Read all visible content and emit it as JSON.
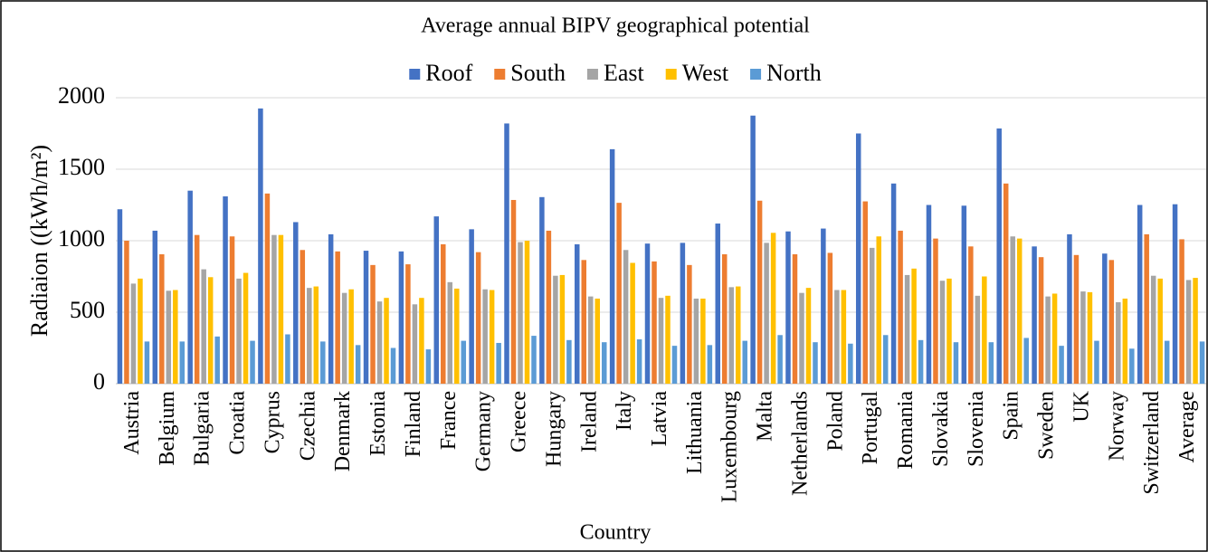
{
  "chart_data": {
    "type": "bar",
    "title": "Average annual BIPV geographical potential",
    "x_label": "Country",
    "y_label": "Radiaion ((kWh/m²)",
    "categories": [
      "Austria",
      "Belgium",
      "Bulgaria",
      "Croatia",
      "Cyprus",
      "Czechia",
      "Denmark",
      "Estonia",
      "Finland",
      "France",
      "Germany",
      "Greece",
      "Hungary",
      "Ireland",
      "Italy",
      "Latvia",
      "Lithuania",
      "Luxembourg",
      "Malta",
      "Netherlands",
      "Poland",
      "Portugal",
      "Romania",
      "Slovakia",
      "Slovenia",
      "Spain",
      "Sweden",
      "UK",
      "Norway",
      "Switzerland",
      "Average"
    ],
    "series": [
      {
        "name": "Roof",
        "color": "#4472c4",
        "values": [
          1220,
          1070,
          1350,
          1310,
          1925,
          1130,
          1045,
          930,
          925,
          1170,
          1080,
          1820,
          1305,
          975,
          1640,
          980,
          985,
          1120,
          1875,
          1065,
          1085,
          1750,
          1400,
          1250,
          1245,
          1785,
          960,
          1045,
          910,
          1250,
          1255
        ]
      },
      {
        "name": "South",
        "color": "#ed7d31",
        "values": [
          1000,
          905,
          1040,
          1030,
          1330,
          935,
          925,
          830,
          835,
          975,
          920,
          1285,
          1070,
          865,
          1265,
          855,
          830,
          905,
          1280,
          905,
          915,
          1275,
          1070,
          1015,
          960,
          1400,
          885,
          900,
          865,
          1045,
          1010
        ]
      },
      {
        "name": "East",
        "color": "#a5a5a5",
        "values": [
          700,
          650,
          800,
          735,
          1040,
          670,
          635,
          575,
          555,
          710,
          660,
          990,
          755,
          610,
          935,
          600,
          595,
          675,
          985,
          635,
          655,
          950,
          760,
          720,
          615,
          1030,
          610,
          645,
          570,
          755,
          725
        ]
      },
      {
        "name": "West",
        "color": "#ffc000",
        "values": [
          735,
          655,
          745,
          775,
          1040,
          680,
          660,
          600,
          600,
          665,
          655,
          1000,
          760,
          595,
          845,
          615,
          595,
          680,
          1055,
          670,
          655,
          1030,
          805,
          735,
          750,
          1015,
          630,
          640,
          595,
          735,
          740
        ]
      },
      {
        "name": "North",
        "color": "#5b9bd5",
        "values": [
          295,
          295,
          330,
          300,
          345,
          295,
          270,
          250,
          240,
          300,
          285,
          335,
          305,
          290,
          310,
          265,
          270,
          300,
          340,
          290,
          280,
          340,
          305,
          290,
          290,
          320,
          265,
          300,
          245,
          300,
          295
        ]
      }
    ],
    "ylim": [
      0,
      2000
    ],
    "yticks": [
      0,
      500,
      1000,
      1500,
      2000
    ],
    "grid": true,
    "legend": "top"
  }
}
